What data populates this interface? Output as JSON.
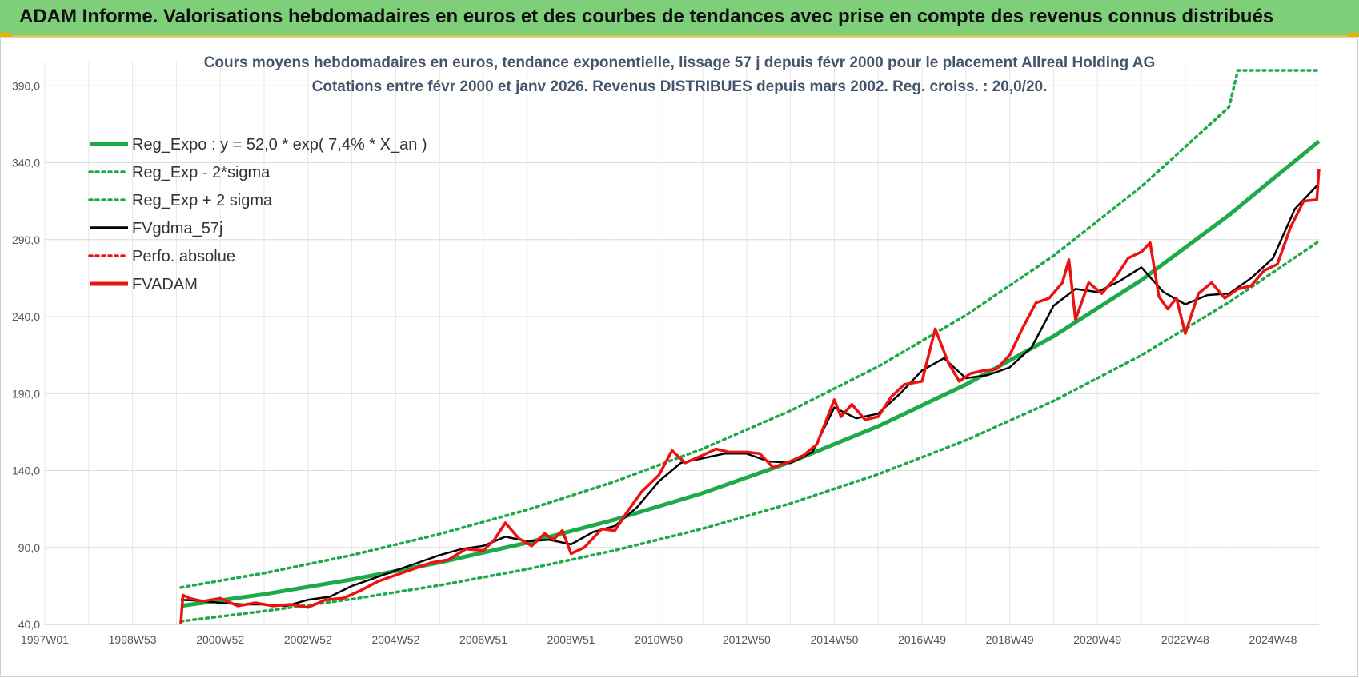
{
  "banner": {
    "title": "ADAM Informe. Valorisations hebdomadaires en euros et des courbes de tendances avec prise en compte des revenus connus distribués"
  },
  "colors": {
    "banner_bg": "#7fcf7a",
    "reg_green": "#1faa4a",
    "fvadam_red": "#ee1111",
    "fvgdma_black": "#000000"
  },
  "chart_data": {
    "type": "line",
    "title": [
      "Cours moyens hebdomadaires en euros, tendance exponentielle, lissage 57 j depuis févr 2000 pour le placement Allreal Holding AG",
      "Cotations entre févr 2000 et janv 2026. Revenus DISTRIBUES depuis mars 2002. Reg. croiss. : 20,0/20."
    ],
    "xlabel": "",
    "ylabel": "",
    "ylim": [
      40,
      400
    ],
    "xlim": [
      1997.0,
      2026.05
    ],
    "yticks": [
      "40,0",
      "90,0",
      "140,0",
      "190,0",
      "240,0",
      "290,0",
      "340,0",
      "390,0"
    ],
    "ytick_values": [
      40,
      90,
      140,
      190,
      240,
      290,
      340,
      390
    ],
    "xtick_labels": [
      "1997W01",
      "1998W53",
      "2000W52",
      "2002W52",
      "2004W52",
      "2006W51",
      "2008W51",
      "2010W50",
      "2012W50",
      "2014W50",
      "2016W49",
      "2018W49",
      "2020W49",
      "2022W48",
      "2024W48"
    ],
    "xtick_values": [
      1997.0,
      1999.0,
      2001.0,
      2003.0,
      2005.0,
      2007.0,
      2009.0,
      2011.0,
      2013.0,
      2015.0,
      2017.0,
      2019.0,
      2021.0,
      2023.0,
      2025.0
    ],
    "grid": true,
    "legend_position": "top-left",
    "legend": [
      {
        "name": "Reg_Expo : y = 52,0 * exp( 7,4% *  X_an )",
        "style": "solid-thick",
        "color": "#1faa4a"
      },
      {
        "name": "Reg_Exp - 2*sigma",
        "style": "dotted",
        "color": "#1faa4a"
      },
      {
        "name": "Reg_Exp + 2 sigma",
        "style": "dotted",
        "color": "#1faa4a"
      },
      {
        "name": "FVgdma_57j",
        "style": "solid",
        "color": "#000000"
      },
      {
        "name": "Perfo. absolue",
        "style": "dotted",
        "color": "#ee1111"
      },
      {
        "name": "FVADAM",
        "style": "solid-thick",
        "color": "#ee1111"
      }
    ],
    "series": [
      {
        "name": "Reg_Expo : y = 52,0 * exp( 7,4% *  X_an )",
        "x": [
          2000.1,
          2002,
          2004,
          2006,
          2008,
          2010,
          2012,
          2014,
          2016,
          2018,
          2020,
          2022,
          2024,
          2026.05
        ],
        "values": [
          52,
          59.6,
          69.2,
          80.2,
          93.1,
          108.1,
          125.4,
          145.5,
          168.8,
          195.9,
          227.2,
          263.7,
          306.0,
          354.0
        ]
      },
      {
        "name": "Reg_Exp - 2*sigma",
        "x": [
          2000.1,
          2002,
          2004,
          2006,
          2008,
          2010,
          2012,
          2014,
          2016,
          2018,
          2020,
          2022,
          2024,
          2026.05
        ],
        "values": [
          42,
          48.6,
          56.4,
          65.4,
          75.9,
          88.1,
          102.2,
          118.6,
          137.6,
          159.7,
          185.2,
          214.9,
          249.4,
          289.0
        ]
      },
      {
        "name": "Reg_Exp + 2 sigma",
        "x": [
          2000.1,
          2002,
          2004,
          2006,
          2008,
          2010,
          2012,
          2014,
          2016,
          2018,
          2020,
          2022,
          2024,
          2024.2,
          2026.05
        ],
        "values": [
          64,
          73.3,
          85.0,
          98.7,
          114.5,
          132.9,
          154.2,
          178.9,
          207.6,
          240.9,
          279.5,
          324.4,
          376.3,
          400.0,
          400.0
        ]
      },
      {
        "name": "FVgdma_57j",
        "x": [
          2000.1,
          2000.5,
          2001.0,
          2001.5,
          2002.0,
          2002.5,
          2003.0,
          2003.5,
          2004.0,
          2004.5,
          2005.0,
          2005.5,
          2006.0,
          2006.5,
          2007.0,
          2007.5,
          2008.0,
          2008.5,
          2009.0,
          2009.5,
          2010.0,
          2010.5,
          2011.0,
          2011.5,
          2012.0,
          2012.5,
          2013.0,
          2013.5,
          2014.0,
          2014.5,
          2015.0,
          2015.5,
          2016.0,
          2016.5,
          2017.0,
          2017.5,
          2018.0,
          2018.5,
          2019.0,
          2019.5,
          2020.0,
          2020.5,
          2021.0,
          2021.5,
          2022.0,
          2022.5,
          2023.0,
          2023.5,
          2024.0,
          2024.5,
          2025.0,
          2025.5,
          2026.0
        ],
        "values": [
          56,
          55.5,
          54,
          53,
          53,
          52,
          56,
          58,
          65,
          70,
          75,
          80,
          85,
          89,
          91,
          97,
          94,
          95,
          92,
          100,
          104,
          116,
          133,
          145,
          148,
          151,
          151,
          146,
          145,
          152,
          181,
          174,
          177,
          190,
          205,
          213,
          200,
          202,
          207,
          220,
          247,
          258,
          256,
          263,
          272,
          256,
          248,
          254,
          255,
          265,
          278,
          310,
          325
        ]
      },
      {
        "name": "FVADAM",
        "x": [
          2000.1,
          2000.15,
          2000.3,
          2000.6,
          2001.0,
          2001.4,
          2001.8,
          2002.2,
          2002.6,
          2003.0,
          2003.4,
          2003.8,
          2004.2,
          2004.6,
          2005.0,
          2005.4,
          2005.8,
          2006.2,
          2006.6,
          2007.0,
          2007.25,
          2007.5,
          2007.8,
          2008.1,
          2008.4,
          2008.6,
          2008.8,
          2009.0,
          2009.3,
          2009.7,
          2010.0,
          2010.3,
          2010.6,
          2011.0,
          2011.3,
          2011.6,
          2012.0,
          2012.3,
          2012.6,
          2013.0,
          2013.3,
          2013.6,
          2014.0,
          2014.3,
          2014.6,
          2015.0,
          2015.15,
          2015.4,
          2015.7,
          2016.0,
          2016.3,
          2016.6,
          2017.0,
          2017.3,
          2017.6,
          2017.85,
          2018.1,
          2018.4,
          2018.7,
          2019.0,
          2019.3,
          2019.6,
          2019.9,
          2020.2,
          2020.35,
          2020.5,
          2020.8,
          2021.1,
          2021.4,
          2021.7,
          2022.0,
          2022.2,
          2022.4,
          2022.6,
          2022.8,
          2023.0,
          2023.3,
          2023.6,
          2023.9,
          2024.2,
          2024.5,
          2024.8,
          2025.1,
          2025.4,
          2025.7,
          2026.0,
          2026.05
        ],
        "values": [
          40,
          59,
          57,
          55,
          57,
          52,
          54,
          52,
          53,
          51,
          56,
          57,
          62,
          68,
          72,
          76,
          80,
          82,
          89,
          88,
          95,
          106,
          96,
          91,
          99,
          95,
          101,
          86,
          90,
          102,
          101,
          114,
          126,
          137,
          153,
          145,
          150,
          154,
          152,
          152,
          151,
          142,
          146,
          150,
          157,
          186,
          175,
          183,
          173,
          175,
          188,
          196,
          198,
          232,
          210,
          198,
          203,
          205,
          206,
          215,
          233,
          249,
          252,
          262,
          277,
          238,
          262,
          255,
          265,
          278,
          282,
          288,
          253,
          245,
          252,
          229,
          255,
          262,
          252,
          258,
          260,
          270,
          274,
          298,
          315,
          316,
          336
        ]
      }
    ]
  }
}
